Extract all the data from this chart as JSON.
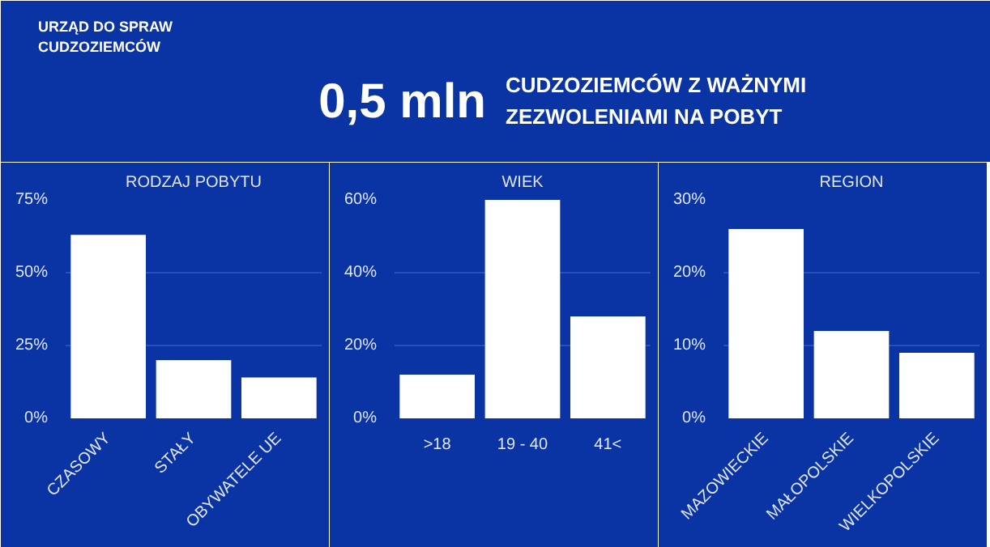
{
  "chart_data": [
    {
      "type": "other",
      "title": "0,5 mln",
      "subtitle": "CUDZOZIEMCÓW Z WAŻNYMI ZEZWOLENIAMI NA POBYT",
      "annotations": [
        "URZĄD DO SPRAW CUDZOZIEMCÓW"
      ]
    },
    {
      "type": "bar",
      "title": "RODZAJ POBYTU",
      "categories": [
        "CZASOWY",
        "STAŁY",
        "OBYWATELE UE"
      ],
      "values": [
        63,
        20,
        14
      ],
      "color": "#ffffff",
      "ylim": [
        0,
        75
      ],
      "yticks": [
        {
          "value": 0,
          "label": "0%"
        },
        {
          "value": 25,
          "label": "25%"
        },
        {
          "value": 50,
          "label": "50%"
        },
        {
          "value": 75,
          "label": "75%"
        }
      ],
      "grid": "y"
    },
    {
      "type": "bar",
      "title": "WIEK",
      "categories": [
        ">18",
        "19 - 40",
        "41<"
      ],
      "values": [
        12,
        60,
        28
      ],
      "color": "#ffffff",
      "ylim": [
        0,
        60
      ],
      "yticks": [
        {
          "value": 0,
          "label": "0%"
        },
        {
          "value": 20,
          "label": "20%"
        },
        {
          "value": 40,
          "label": "40%"
        },
        {
          "value": 60,
          "label": "60%"
        }
      ],
      "grid": "y"
    },
    {
      "type": "bar",
      "title": "REGION",
      "categories": [
        "MAZOWIECKIE",
        "MAŁOPOLSKIE",
        "WIELKOPOLSKIE"
      ],
      "values": [
        26,
        12,
        9
      ],
      "color": "#ffffff",
      "ylim": [
        0,
        30
      ],
      "yticks": [
        {
          "value": 0,
          "label": "0%"
        },
        {
          "value": 10,
          "label": "10%"
        },
        {
          "value": 20,
          "label": "20%"
        },
        {
          "value": 30,
          "label": "30%"
        }
      ],
      "grid": "y"
    }
  ]
}
